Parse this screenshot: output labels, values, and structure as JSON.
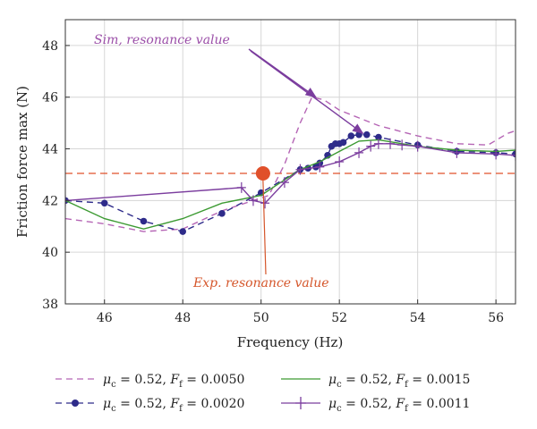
{
  "chart_data": {
    "type": "line",
    "xlabel": "Frequency (Hz)",
    "ylabel": "Friction force max (N)",
    "xlim": [
      45,
      56.5
    ],
    "ylim": [
      38,
      49
    ],
    "xticks": [
      46,
      48,
      50,
      52,
      54,
      56
    ],
    "yticks": [
      38,
      40,
      42,
      44,
      46,
      48
    ],
    "grid": true,
    "reference_line": {
      "y": 43.05,
      "color": "#e0502a"
    },
    "experimental_point": {
      "x": 50.05,
      "y": 43.05,
      "color": "#e0502a"
    },
    "annotations": [
      {
        "text": "Sim, resonance value",
        "color": "#9b4fa8",
        "targets": [
          [
            51.4,
            46.0
          ],
          [
            52.6,
            44.6
          ]
        ]
      },
      {
        "text": "Exp. resonance value",
        "color": "#d5562b",
        "targets": [
          [
            50.05,
            43.05
          ]
        ]
      }
    ],
    "series": [
      {
        "mu": "0.52",
        "ff": "0.0050",
        "color": "#b565b5",
        "style": "dashed",
        "marker": "none",
        "x": [
          45,
          46,
          47,
          48,
          49,
          49.8,
          50.2,
          50.6,
          51,
          51.3,
          51.6,
          52,
          52.5,
          53,
          53.5,
          54,
          55,
          55.8,
          56.3,
          56.5
        ],
        "y": [
          41.3,
          41.1,
          40.8,
          40.9,
          41.6,
          42.0,
          42.2,
          43.4,
          45.0,
          46.0,
          45.9,
          45.5,
          45.2,
          44.9,
          44.7,
          44.5,
          44.2,
          44.15,
          44.6,
          44.7
        ]
      },
      {
        "mu": "0.52",
        "ff": "0.0020",
        "color": "#2e2b8a",
        "style": "dashed",
        "marker": "circle",
        "x": [
          45,
          46,
          47,
          48,
          49,
          50,
          51,
          51.2,
          51.4,
          51.5,
          51.7,
          51.8,
          51.9,
          52.0,
          52.1,
          52.3,
          52.5,
          52.7,
          53,
          54,
          55,
          56,
          56.5
        ],
        "y": [
          42.0,
          41.9,
          41.2,
          40.8,
          41.5,
          42.3,
          43.2,
          43.25,
          43.3,
          43.45,
          43.75,
          44.1,
          44.2,
          44.2,
          44.25,
          44.5,
          44.55,
          44.55,
          44.45,
          44.15,
          43.9,
          43.85,
          43.8
        ]
      },
      {
        "mu": "0.52",
        "ff": "0.0015",
        "color": "#3c9a32",
        "style": "solid",
        "marker": "none",
        "x": [
          45,
          46,
          47,
          48,
          49,
          50,
          51,
          51.5,
          52,
          52.5,
          53,
          54,
          55,
          56,
          56.5
        ],
        "y": [
          42.0,
          41.3,
          40.9,
          41.3,
          41.9,
          42.2,
          43.2,
          43.5,
          43.9,
          44.3,
          44.35,
          44.1,
          43.95,
          43.9,
          43.95
        ]
      },
      {
        "mu": "0.52",
        "ff": "0.0011",
        "color": "#7b3d9e",
        "style": "solid",
        "marker": "plus",
        "x": [
          45,
          49.5,
          49.8,
          50.1,
          50.6,
          51,
          51.5,
          52,
          52.5,
          52.8,
          53,
          53.3,
          53.6,
          54,
          55,
          56,
          56.5
        ],
        "y": [
          42.0,
          42.5,
          42.0,
          41.9,
          42.7,
          43.2,
          43.3,
          43.5,
          43.85,
          44.1,
          44.2,
          44.2,
          44.15,
          44.1,
          43.85,
          43.8,
          43.75
        ]
      }
    ]
  },
  "legend": {
    "items": [
      {
        "mu_sym": "μ",
        "mu_sub": "c",
        "mu_val": " = 0.52, ",
        "f_sym": "F",
        "f_sub": "f",
        "f_val": " = 0.0050"
      },
      {
        "mu_sym": "μ",
        "mu_sub": "c",
        "mu_val": " = 0.52, ",
        "f_sym": "F",
        "f_sub": "f",
        "f_val": " = 0.0015"
      },
      {
        "mu_sym": "μ",
        "mu_sub": "c",
        "mu_val": " = 0.52, ",
        "f_sym": "F",
        "f_sub": "f",
        "f_val": " = 0.0020"
      },
      {
        "mu_sym": "μ",
        "mu_sub": "c",
        "mu_val": " = 0.52, ",
        "f_sym": "F",
        "f_sub": "f",
        "f_val": " = 0.0011"
      }
    ]
  }
}
